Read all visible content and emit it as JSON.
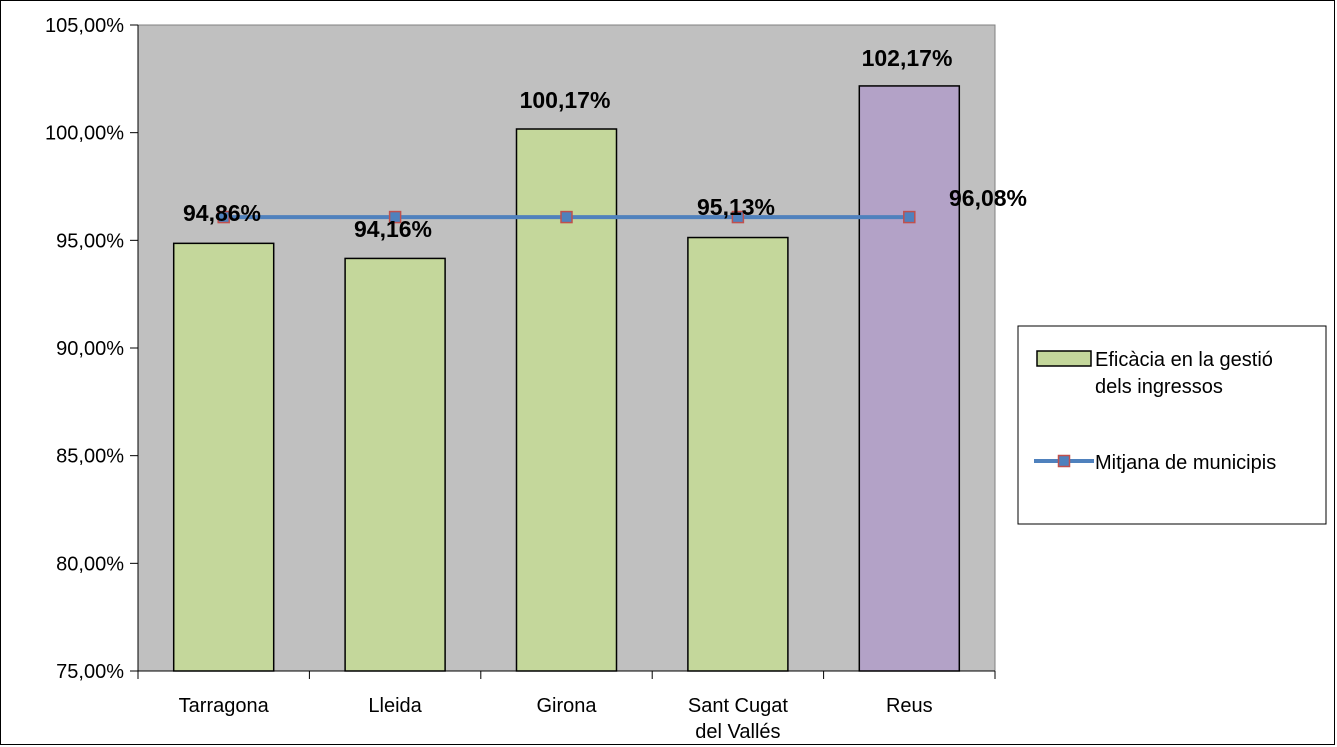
{
  "chart_data": {
    "type": "bar",
    "title": "",
    "xlabel": "",
    "ylabel": "",
    "categories": [
      "Tarragona",
      "Lleida",
      "Girona",
      "Sant Cugat del Vallés",
      "Reus"
    ],
    "category_lines": [
      [
        "Tarragona"
      ],
      [
        "Lleida"
      ],
      [
        "Girona"
      ],
      [
        "Sant Cugat",
        "del Vallés"
      ],
      [
        "Reus"
      ]
    ],
    "ylim": [
      75,
      105
    ],
    "yticks": [
      75,
      80,
      85,
      90,
      95,
      100,
      105
    ],
    "ytick_labels": [
      "75,00%",
      "80,00%",
      "85,00%",
      "90,00%",
      "95,00%",
      "100,00%",
      "105,00%"
    ],
    "grid": false,
    "legend_position": "right",
    "series": [
      {
        "name": "Eficàcia en la gestió dels ingressos",
        "legend_lines": [
          "Eficàcia en la gestió",
          "dels ingressos"
        ],
        "kind": "bar",
        "values": [
          94.86,
          94.16,
          100.17,
          95.13,
          102.17
        ],
        "labels": [
          "94,86%",
          "94,16%",
          "100,17%",
          "95,13%",
          "102,17%"
        ],
        "colors": [
          "#c4d79b",
          "#c4d79b",
          "#c4d79b",
          "#c4d79b",
          "#b3a2c7"
        ]
      },
      {
        "name": "Mitjana de municipis",
        "legend_lines": [
          "Mitjana de municipis"
        ],
        "kind": "line",
        "values": [
          96.08,
          96.08,
          96.08,
          96.08,
          96.08
        ],
        "label": "96,08%",
        "line_color": "#4f81bd",
        "marker_fill": "#4f81bd",
        "marker_edge": "#c0504d"
      }
    ],
    "colors": {
      "plot_background": "#c0c0c0",
      "axis": "#000000"
    }
  }
}
